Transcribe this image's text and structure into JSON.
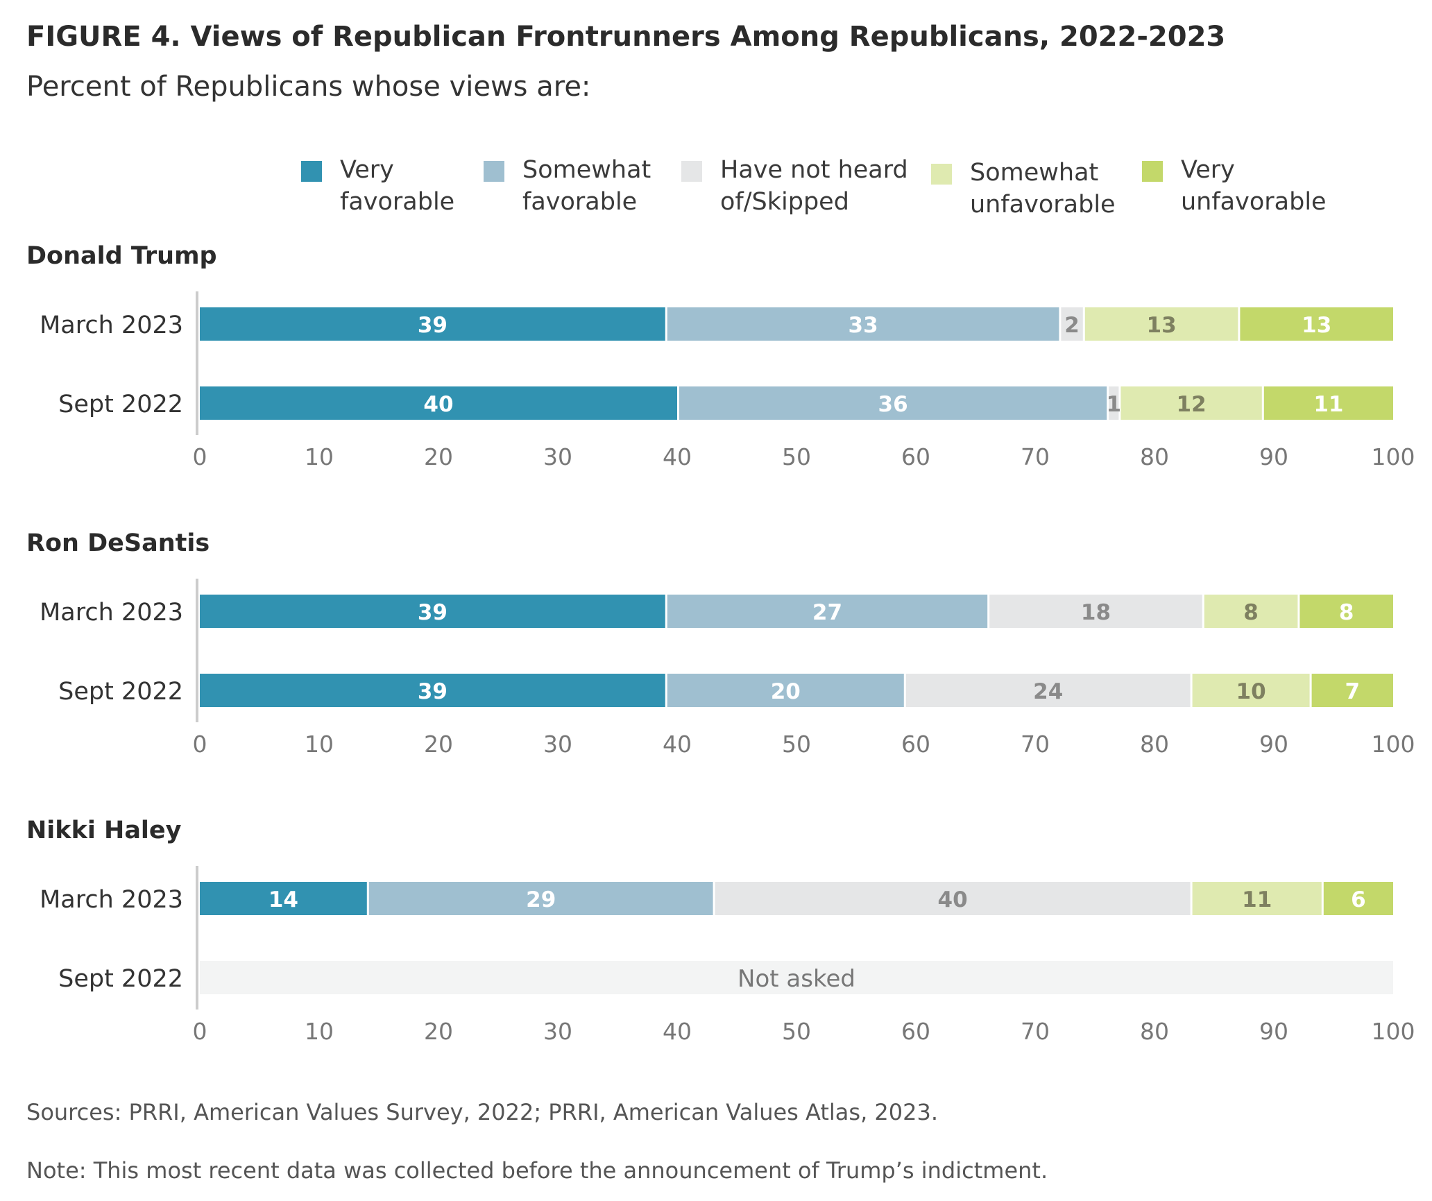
{
  "figure": {
    "title": "FIGURE 4.  Views of Republican Frontrunners Among Republicans, 2022-2023",
    "subtitle": "Percent of Republicans whose views are:",
    "sources": "Sources: PRRI, American Values Survey, 2022; PRRI, American Values Atlas, 2023.",
    "note": "Note: This most recent data was collected before the announcement of Trump’s indictment."
  },
  "colors": {
    "very_favorable": "#3192b1",
    "somewhat_favorable": "#9fbfd0",
    "not_heard": "#e5e6e7",
    "somewhat_unfavorable": "#dfeab0",
    "very_unfavorable": "#c3d86a",
    "not_asked_bg": "#f3f4f4"
  },
  "chart_data": {
    "type": "bar",
    "orientation": "horizontal",
    "stacked": true,
    "xlim": [
      0,
      100
    ],
    "xticks": [
      "0",
      "10",
      "20",
      "30",
      "40",
      "50",
      "60",
      "70",
      "80",
      "90",
      "100"
    ],
    "grid": false,
    "legend_position": "top",
    "legend": [
      {
        "key": "very_favorable",
        "lines": [
          "Very",
          "favorable"
        ]
      },
      {
        "key": "somewhat_favorable",
        "lines": [
          "Somewhat",
          "favorable"
        ]
      },
      {
        "key": "not_heard",
        "lines": [
          "Have not heard",
          "of/Skipped"
        ]
      },
      {
        "key": "somewhat_unfavorable",
        "lines": [
          "Somewhat",
          "unfavorable"
        ]
      },
      {
        "key": "very_unfavorable",
        "lines": [
          "Very",
          "unfavorable"
        ]
      }
    ],
    "panels": [
      {
        "name": "Donald Trump",
        "rows": [
          {
            "label": "March 2023",
            "values": [
              39,
              33,
              2,
              13,
              13
            ]
          },
          {
            "label": "Sept 2022",
            "values": [
              40,
              36,
              1,
              12,
              11
            ]
          }
        ]
      },
      {
        "name": "Ron DeSantis",
        "rows": [
          {
            "label": "March 2023",
            "values": [
              39,
              27,
              18,
              8,
              8
            ]
          },
          {
            "label": "Sept 2022",
            "values": [
              39,
              20,
              24,
              10,
              7
            ]
          }
        ]
      },
      {
        "name": "Nikki Haley",
        "rows": [
          {
            "label": "March 2023",
            "values": [
              14,
              29,
              40,
              11,
              6
            ]
          },
          {
            "label": "Sept 2022",
            "values": null,
            "note": "Not asked"
          }
        ]
      }
    ]
  }
}
